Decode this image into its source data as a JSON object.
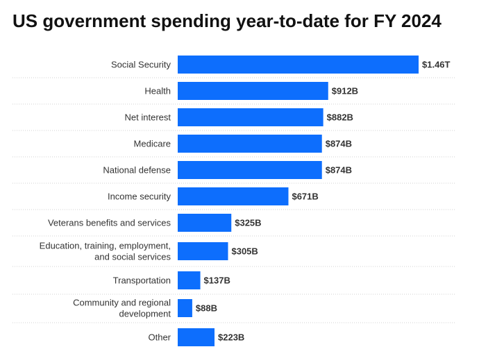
{
  "chart_data": {
    "type": "bar",
    "orientation": "horizontal",
    "title": "US government spending year-to-date for FY 2024",
    "xlabel": "",
    "ylabel": "",
    "grid": false,
    "unit": "USD billions",
    "categories": [
      "Social Security",
      "Health",
      "Net interest",
      "Medicare",
      "National defense",
      "Income security",
      "Veterans benefits and services",
      "Education, training, employment, and social services",
      "Transportation",
      "Community and regional development",
      "Other"
    ],
    "category_lines": [
      [
        "Social Security"
      ],
      [
        "Health"
      ],
      [
        "Net interest"
      ],
      [
        "Medicare"
      ],
      [
        "National defense"
      ],
      [
        "Income security"
      ],
      [
        "Veterans benefits and services"
      ],
      [
        "Education, training, employment,",
        "and social services"
      ],
      [
        "Transportation"
      ],
      [
        "Community and regional",
        "development"
      ],
      [
        "Other"
      ]
    ],
    "values": [
      1460,
      912,
      882,
      874,
      874,
      671,
      325,
      305,
      137,
      88,
      223
    ],
    "value_labels": [
      "$1.46T",
      "$912B",
      "$882B",
      "$874B",
      "$874B",
      "$671B",
      "$325B",
      "$305B",
      "$137B",
      "$88B",
      "$223B"
    ],
    "colors": {
      "bar": "#0d6efd",
      "text": "#333333",
      "separator": "#d0d0d0"
    }
  }
}
